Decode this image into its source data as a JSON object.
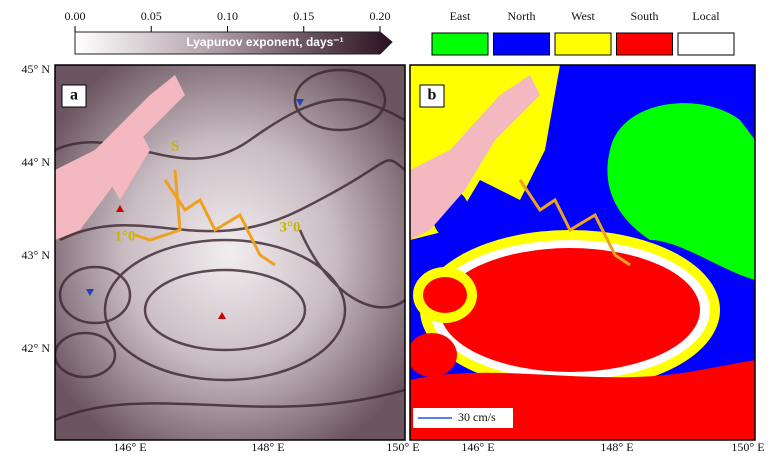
{
  "colorbar": {
    "label": "Lyapunov exponent, days⁻¹",
    "range": [
      0,
      0.2
    ],
    "ticks": [
      {
        "value": 0,
        "label": "0.00"
      },
      {
        "value": 0.05,
        "label": "0.05"
      },
      {
        "value": 0.1,
        "label": "0.10"
      },
      {
        "value": 0.15,
        "label": "0.15"
      },
      {
        "value": 0.2,
        "label": "0.20"
      }
    ]
  },
  "legend": [
    {
      "name": "East",
      "color": "#00ff00"
    },
    {
      "name": "North",
      "color": "#0000ff"
    },
    {
      "name": "West",
      "color": "#ffff00"
    },
    {
      "name": "South",
      "color": "#ff0000"
    },
    {
      "name": "Local",
      "color": "#ffffff"
    }
  ],
  "panels": [
    {
      "label": "a",
      "annotations": [
        "S",
        "1°0",
        "3°0"
      ]
    },
    {
      "label": "b",
      "scale_label": "30 cm/s"
    }
  ],
  "latitude_labels": [
    "45° N",
    "44° N",
    "43° N",
    "42° N"
  ],
  "longitude_labels": [
    "146° E",
    "148° E",
    "150° E"
  ]
}
